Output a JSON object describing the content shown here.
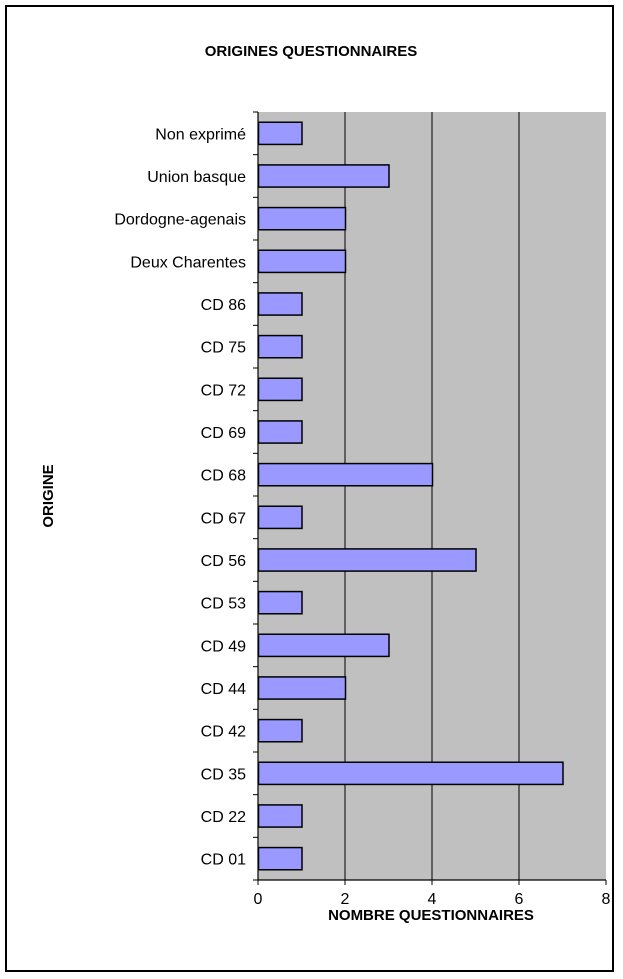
{
  "chart_data": {
    "type": "bar",
    "orientation": "horizontal",
    "title": "ORIGINES QUESTIONNAIRES",
    "xlabel": "NOMBRE QUESTIONNAIRES",
    "ylabel": "ORIGINE",
    "categories": [
      "Non exprimé",
      "Union basque",
      "Dordogne-agenais",
      "Deux Charentes",
      "CD 86",
      "CD 75",
      "CD 72",
      "CD 69",
      "CD 68",
      "CD 67",
      "CD 56",
      "CD 53",
      "CD 49",
      "CD 44",
      "CD 42",
      "CD 35",
      "CD 22",
      "CD 01"
    ],
    "values": [
      1,
      3,
      2,
      2,
      1,
      1,
      1,
      1,
      4,
      1,
      5,
      1,
      3,
      2,
      1,
      7,
      1,
      1
    ],
    "xlim": [
      0,
      8
    ],
    "xticks": [
      0,
      2,
      4,
      6,
      8
    ],
    "grid": "vertical",
    "legend": "none",
    "colors": {
      "bar": "#9999ff",
      "bar_border": "#000000",
      "plot_bg": "#c0c0c0",
      "grid": "#000000"
    }
  }
}
